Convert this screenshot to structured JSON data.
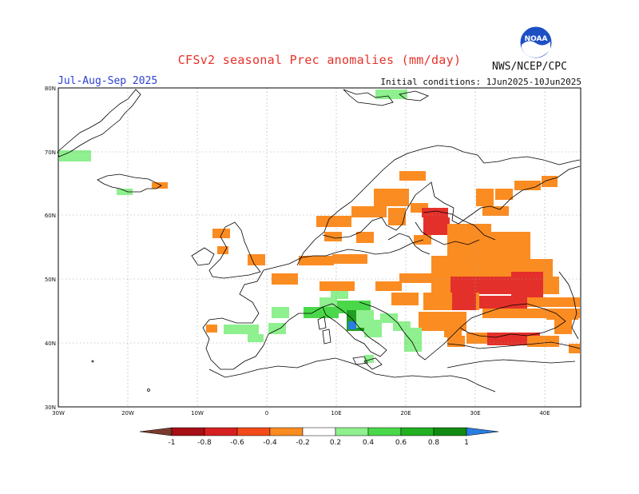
{
  "title": "CFSv2 seasonal Prec anomalies (mm/day)",
  "period": "Jul-Aug-Sep 2025",
  "initial_conditions": "Initial conditions: 1Jun2025-10Jun2025",
  "agency": "NWS/NCEP/CPC",
  "logo_text": "NOAA",
  "map": {
    "lat_labels": [
      "80N",
      "70N",
      "60N",
      "50N",
      "40N",
      "30N"
    ],
    "lon_labels": [
      "30W",
      "20W",
      "10W",
      "0",
      "10E",
      "20E",
      "30E",
      "40E"
    ],
    "lat_range": [
      30,
      80
    ],
    "lon_range": [
      -30,
      45
    ],
    "grid": true
  },
  "colorbar": {
    "labels": [
      "-1",
      "-0.8",
      "-0.6",
      "-0.4",
      "-0.2",
      "0.2",
      "0.4",
      "0.6",
      "0.8",
      "1"
    ],
    "colors": [
      "#7a3b2e",
      "#a50f15",
      "#d62020",
      "#f24a1a",
      "#fb8c22",
      "#ffffff",
      "#8ef08e",
      "#4ad84a",
      "#22b022",
      "#118a11",
      "#2a7de1"
    ]
  },
  "anomaly_colors": {
    "dry_strong": "#e4302a",
    "dry": "#fb8c22",
    "wet": "#8ef08e",
    "wet_moderate": "#4ad84a",
    "wet_strong": "#1f9f1f",
    "wet_extreme": "#2a7de1"
  }
}
